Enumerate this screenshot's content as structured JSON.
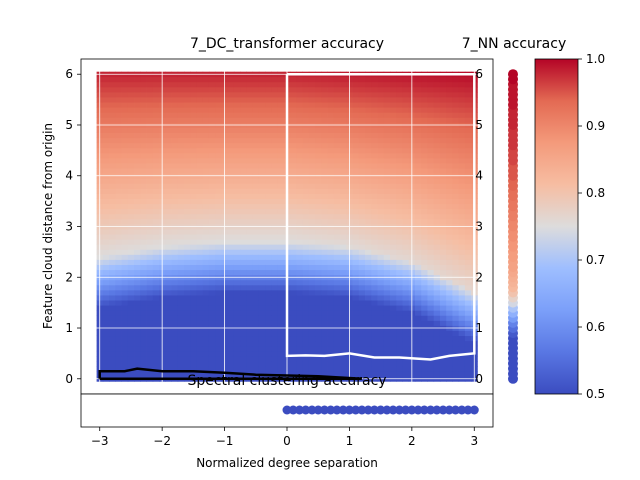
{
  "chart_data": [
    {
      "type": "heatmap",
      "title": "7_DC_transformer accuracy",
      "xlabel": "Normalized degree separation",
      "ylabel": "Feature cloud distance from origin",
      "xlim": [
        -3.3,
        3.3
      ],
      "ylim": [
        -0.3,
        6.3
      ],
      "x_ticks": [
        "−3",
        "−2",
        "−1",
        "0",
        "1",
        "2",
        "3"
      ],
      "y_ticks": [
        "0",
        "1",
        "2",
        "3",
        "4",
        "5",
        "6"
      ],
      "grid": true,
      "colormap": "coolwarm",
      "vmin": 0.5,
      "vmax": 1.0,
      "accuracy_model": {
        "description_of_field": "accuracy rises with distance; transition boundary curves downward toward x=3",
        "boundary_distance_at_x": [
          {
            "x": -3,
            "y": 2.0
          },
          {
            "x": -2,
            "y": 2.2
          },
          {
            "x": -1,
            "y": 2.3
          },
          {
            "x": 0,
            "y": 2.3
          },
          {
            "x": 1,
            "y": 2.2
          },
          {
            "x": 2,
            "y": 1.9
          },
          {
            "x": 3,
            "y": 1.3
          }
        ]
      },
      "overlay_regions": [
        {
          "name": "white-region",
          "color": "#ffffff",
          "path": [
            [
              0,
              6.0
            ],
            [
              3,
              6.0
            ],
            [
              3,
              0.5
            ],
            [
              2.6,
              0.45
            ],
            [
              2.3,
              0.38
            ],
            [
              1.8,
              0.42
            ],
            [
              1.4,
              0.42
            ],
            [
              1.0,
              0.5
            ],
            [
              0.6,
              0.45
            ],
            [
              0.3,
              0.46
            ],
            [
              0,
              0.45
            ],
            [
              0,
              6.0
            ]
          ]
        },
        {
          "name": "black-region",
          "color": "#000000",
          "path": [
            [
              -3,
              0
            ],
            [
              -3,
              0.15
            ],
            [
              -2.6,
              0.15
            ],
            [
              -2.4,
              0.2
            ],
            [
              -2.0,
              0.15
            ],
            [
              -1.5,
              0.15
            ],
            [
              -1.0,
              0.12
            ],
            [
              -0.5,
              0.08
            ],
            [
              0.5,
              0.05
            ],
            [
              1.2,
              0.0
            ],
            [
              -3,
              0.0
            ]
          ]
        }
      ]
    },
    {
      "type": "scatter",
      "title": "7_NN accuracy",
      "ylim": [
        -0.3,
        6.3
      ],
      "y_ticks": [
        "0",
        "1",
        "2",
        "3",
        "4",
        "5",
        "6"
      ],
      "x": 0,
      "description": "vertical column of markers colored by accuracy, low at bottom to high at top",
      "y_values": [
        0.0,
        0.1,
        0.2,
        0.3,
        0.4,
        0.5,
        0.6,
        0.7,
        0.8,
        0.9,
        1.0,
        1.1,
        1.2,
        1.3,
        1.4,
        1.5,
        1.6,
        1.7,
        1.8,
        1.9,
        2.0,
        2.1,
        2.2,
        2.3,
        2.4,
        2.5,
        2.6,
        2.7,
        2.8,
        2.9,
        3.0,
        3.1,
        3.2,
        3.3,
        3.4,
        3.5,
        3.6,
        3.7,
        3.8,
        3.9,
        4.0,
        4.1,
        4.2,
        4.3,
        4.4,
        4.5,
        4.6,
        4.7,
        4.8,
        4.9,
        5.0,
        5.1,
        5.2,
        5.3,
        5.4,
        5.5,
        5.6,
        5.7,
        5.8,
        5.9,
        6.0
      ],
      "accuracy_values": [
        0.5,
        0.5,
        0.5,
        0.5,
        0.5,
        0.5,
        0.5,
        0.5,
        0.5,
        0.52,
        0.55,
        0.58,
        0.62,
        0.66,
        0.7,
        0.74,
        0.77,
        0.8,
        0.82,
        0.83,
        0.84,
        0.85,
        0.86,
        0.86,
        0.87,
        0.87,
        0.88,
        0.88,
        0.89,
        0.89,
        0.9,
        0.9,
        0.91,
        0.91,
        0.92,
        0.92,
        0.93,
        0.93,
        0.94,
        0.94,
        0.95,
        0.95,
        0.95,
        0.96,
        0.96,
        0.96,
        0.97,
        0.97,
        0.97,
        0.97,
        0.98,
        0.98,
        0.98,
        0.98,
        0.99,
        0.99,
        0.99,
        0.99,
        0.99,
        1.0,
        1.0
      ]
    },
    {
      "type": "scatter",
      "title": "Spectral clustering accuracy",
      "xlim": [
        -3.3,
        3.3
      ],
      "y": 0,
      "description": "horizontal row of markers at low accuracy from x=0 to x=3",
      "x_values": [
        0.0,
        0.1,
        0.2,
        0.3,
        0.4,
        0.5,
        0.6,
        0.7,
        0.8,
        0.9,
        1.0,
        1.1,
        1.2,
        1.3,
        1.4,
        1.5,
        1.6,
        1.7,
        1.8,
        1.9,
        2.0,
        2.1,
        2.2,
        2.3,
        2.4,
        2.5,
        2.6,
        2.7,
        2.8,
        2.9,
        3.0
      ],
      "accuracy": 0.5
    },
    {
      "type": "colorbar",
      "vmin": 0.5,
      "vmax": 1.0,
      "ticks": [
        "0.5",
        "0.6",
        "0.7",
        "0.8",
        "0.9",
        "1.0"
      ],
      "colormap": "coolwarm"
    }
  ]
}
